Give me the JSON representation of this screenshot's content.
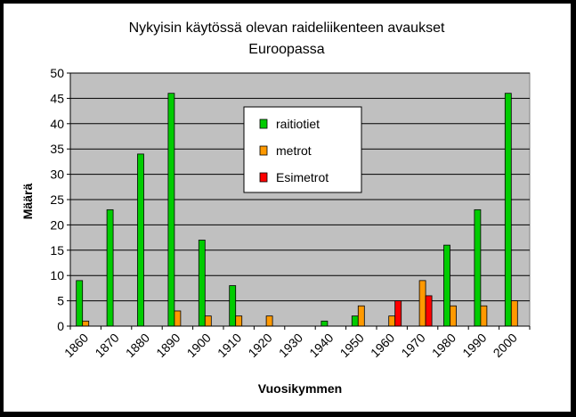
{
  "chart_data": {
    "type": "bar",
    "title": "Nykyisin käytössä olevan raideliikenteen avaukset",
    "subtitle": "Euroopassa",
    "xlabel": "Vuosikymmen",
    "ylabel": "Määrä",
    "ylim": [
      0,
      50
    ],
    "ytick_step": 5,
    "grid": true,
    "legend_position": "upper-center",
    "categories": [
      "1860",
      "1870",
      "1880",
      "1890",
      "1900",
      "1910",
      "1920",
      "1930",
      "1940",
      "1950",
      "1960",
      "1970",
      "1980",
      "1990",
      "2000"
    ],
    "series": [
      {
        "name": "raitiotiet",
        "color": "#00cc00",
        "values": [
          9,
          23,
          34,
          46,
          17,
          8,
          0,
          0,
          1,
          2,
          0,
          0,
          16,
          23,
          46
        ]
      },
      {
        "name": "metrot",
        "color": "#ff9900",
        "values": [
          1,
          0,
          0,
          3,
          2,
          2,
          2,
          0,
          0,
          4,
          2,
          9,
          4,
          4,
          5
        ]
      },
      {
        "name": "Esimetrot",
        "color": "#ff0000",
        "values": [
          0,
          0,
          0,
          0,
          0,
          0,
          0,
          0,
          0,
          0,
          5,
          6,
          0,
          0,
          0
        ]
      }
    ]
  }
}
